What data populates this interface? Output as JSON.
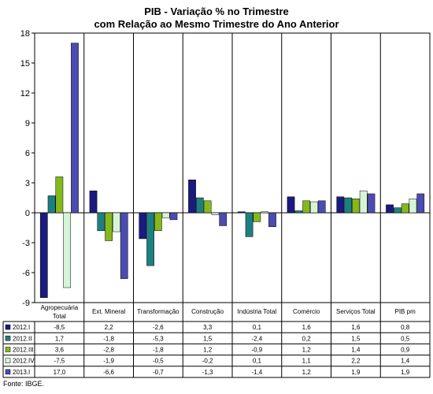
{
  "chart_data": {
    "type": "bar",
    "title": "PIB - Variação % no Trimestre",
    "subtitle": "com Relação ao Mesmo Trimestre do Ano Anterior",
    "categories": [
      "Agropecuária Total",
      "Ext. Mineral",
      "Transformação",
      "Construção",
      "Indústria Total",
      "Comércio",
      "Serviços Total",
      "PIB pm"
    ],
    "category_lines": [
      [
        "Agropecuária",
        "Total"
      ],
      [
        "Ext. Mineral"
      ],
      [
        "Transformação"
      ],
      [
        "Construção"
      ],
      [
        "Indústria Total"
      ],
      [
        "Comércio"
      ],
      [
        "Serviços Total"
      ],
      [
        "PIB pm"
      ]
    ],
    "series": [
      {
        "name": "2012.I",
        "color": "#1a1a80",
        "values": [
          -8.5,
          2.2,
          -2.6,
          3.3,
          0.1,
          1.6,
          1.6,
          0.8
        ]
      },
      {
        "name": "2012.II",
        "color": "#1d8080",
        "values": [
          1.7,
          -1.8,
          -5.3,
          1.5,
          -2.4,
          0.2,
          1.5,
          0.5
        ]
      },
      {
        "name": "2012.III",
        "color": "#84b81c",
        "values": [
          3.6,
          -2.8,
          -1.8,
          1.2,
          -0.9,
          1.2,
          1.4,
          0.9
        ]
      },
      {
        "name": "2012.IV",
        "color": "#d6f5d6",
        "values": [
          -7.5,
          -1.9,
          -0.5,
          -0.2,
          0.1,
          1.1,
          2.2,
          1.4
        ]
      },
      {
        "name": "2013.I",
        "color": "#4b4bb0",
        "values": [
          17.0,
          -6.6,
          -0.7,
          -1.3,
          -1.4,
          1.2,
          1.9,
          1.9
        ]
      }
    ],
    "table_values": [
      [
        "-8,5",
        "2,2",
        "-2,6",
        "3,3",
        "0,1",
        "1,6",
        "1,6",
        "0,8"
      ],
      [
        "1,7",
        "-1,8",
        "-5,3",
        "1,5",
        "-2,4",
        "0,2",
        "1,5",
        "0,5"
      ],
      [
        "3,6",
        "-2,8",
        "-1,8",
        "1,2",
        "-0,9",
        "1,2",
        "1,4",
        "0,9"
      ],
      [
        "-7,5",
        "-1,9",
        "-0,5",
        "-0,2",
        "0,1",
        "1,1",
        "2,2",
        "1,4"
      ],
      [
        "17,0",
        "-6,6",
        "-0,7",
        "-1,3",
        "-1,4",
        "1,2",
        "1,9",
        "1,9"
      ]
    ],
    "yticks": [
      18,
      15,
      12,
      9,
      6,
      3,
      0,
      -3,
      -6,
      -9
    ],
    "ylim": [
      -9,
      18
    ],
    "grid": false,
    "legend": "data table below chart",
    "xlabel": "",
    "ylabel": ""
  },
  "source_note": "Fonte: IBGE."
}
